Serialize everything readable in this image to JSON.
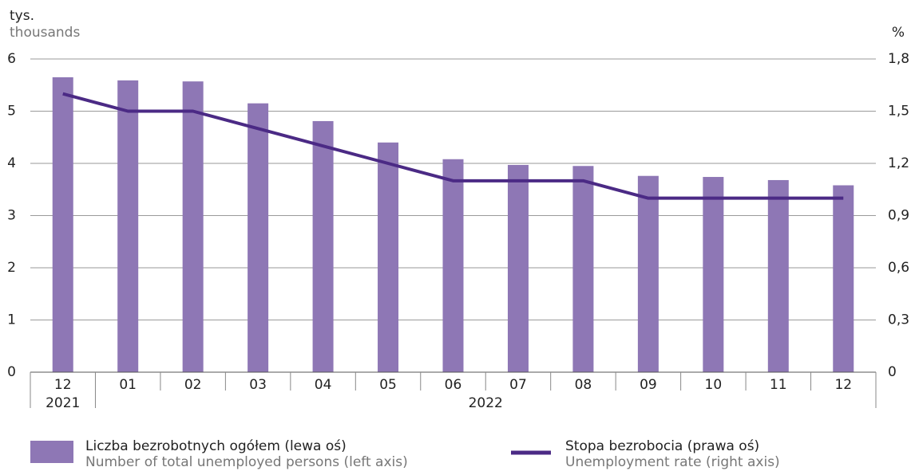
{
  "chart_data": {
    "type": "bar-line",
    "y_label": "tys.",
    "y_label_en": "thousands",
    "y2_label": "%",
    "categories": [
      "12",
      "01",
      "02",
      "03",
      "04",
      "05",
      "06",
      "07",
      "08",
      "09",
      "10",
      "11",
      "12"
    ],
    "year_labels": [
      "2021",
      "2022"
    ],
    "series": [
      {
        "name": "Liczba bezrobotnych ogółem (lewa oś)",
        "name_en": "Number of total unemployed persons (left axis)",
        "type": "bar",
        "color": "#8e77b5",
        "values": [
          5.65,
          5.59,
          5.57,
          5.15,
          4.81,
          4.4,
          4.08,
          3.97,
          3.95,
          3.76,
          3.74,
          3.68,
          3.58
        ]
      },
      {
        "name": "Stopa bezrobocia (prawa oś)",
        "name_en": "Unemployment rate (right axis)",
        "type": "line",
        "color": "#4b2a85",
        "axis": "y2",
        "values": [
          1.6,
          1.5,
          1.5,
          1.4,
          1.3,
          1.2,
          1.1,
          1.1,
          1.1,
          1.0,
          1.0,
          1.0,
          1.0
        ]
      }
    ],
    "ylim": [
      0,
      6
    ],
    "yticks": [
      0,
      1,
      2,
      3,
      4,
      5,
      6
    ],
    "y2lim": [
      0,
      1.8
    ],
    "y2ticks": [
      0,
      {
        "value": 0.3,
        "label": "0,3"
      },
      {
        "value": 0.6,
        "label": "0,6"
      },
      {
        "value": 0.9,
        "label": "0,9"
      },
      {
        "value": 1.2,
        "label": "1,2"
      },
      {
        "value": 1.5,
        "label": "1,5"
      },
      {
        "value": 1.8,
        "label": "1,8"
      }
    ],
    "grid": true
  }
}
